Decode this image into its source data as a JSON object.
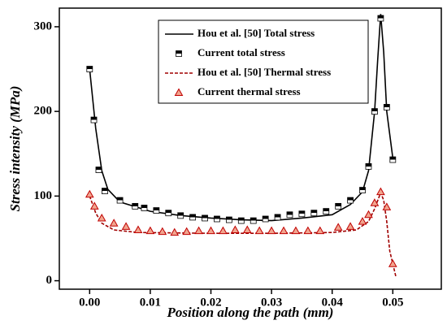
{
  "chart_data": {
    "type": "line",
    "xlabel": "Position along the path (mm)",
    "ylabel": "Stress intensity (MPa)",
    "xlim": [
      -0.005,
      0.058
    ],
    "ylim": [
      -10,
      322
    ],
    "xticks": [
      {
        "value": 0,
        "label": "0.00"
      },
      {
        "value": 0.01,
        "label": "0.01"
      },
      {
        "value": 0.02,
        "label": "0.02"
      },
      {
        "value": 0.03,
        "label": "0.03"
      },
      {
        "value": 0.04,
        "label": "0.04"
      },
      {
        "value": 0.05,
        "label": "0.05"
      }
    ],
    "yticks": [
      0,
      100,
      200,
      300
    ],
    "series": [
      {
        "name": "Hou et al. [50] Total  stress",
        "style": "solid-line",
        "color": "#000000",
        "x": [
          0,
          0.001,
          0.002,
          0.003,
          0.005,
          0.01,
          0.015,
          0.02,
          0.025,
          0.03,
          0.035,
          0.04,
          0.043,
          0.045,
          0.046,
          0.047,
          0.0475,
          0.048,
          0.0485,
          0.049,
          0.05
        ],
        "values": [
          250,
          180,
          130,
          108,
          93,
          82,
          77,
          74,
          72,
          71,
          74,
          78,
          90,
          105,
          130,
          200,
          260,
          315,
          270,
          200,
          145
        ]
      },
      {
        "name": "Current total stress",
        "style": "square-marker",
        "color": "#000000",
        "x": [
          0,
          0.0007,
          0.0015,
          0.0025,
          0.005,
          0.0075,
          0.009,
          0.011,
          0.013,
          0.015,
          0.017,
          0.019,
          0.021,
          0.023,
          0.025,
          0.027,
          0.029,
          0.031,
          0.033,
          0.035,
          0.037,
          0.039,
          0.041,
          0.043,
          0.045,
          0.046,
          0.047,
          0.048,
          0.049,
          0.05
        ],
        "values": [
          250,
          190,
          131,
          106,
          95,
          88,
          86,
          83,
          80,
          77,
          75,
          74,
          73,
          72,
          71,
          71,
          73,
          75,
          78,
          79,
          80,
          82,
          88,
          95,
          107,
          135,
          200,
          310,
          205,
          143
        ]
      },
      {
        "name": "Hou et al. [50] Thermal  stress",
        "style": "dashed-line",
        "color": "#a00000",
        "x": [
          0,
          0.001,
          0.002,
          0.004,
          0.008,
          0.02,
          0.03,
          0.04,
          0.044,
          0.046,
          0.047,
          0.048,
          0.0485,
          0.049,
          0.0495,
          0.0505
        ],
        "values": [
          100,
          80,
          68,
          60,
          57,
          56,
          56,
          57,
          60,
          70,
          85,
          104,
          95,
          70,
          35,
          5
        ]
      },
      {
        "name": "Current thermal stress",
        "style": "triangle-marker",
        "color": "#c00000",
        "x": [
          0,
          0.0008,
          0.002,
          0.004,
          0.006,
          0.008,
          0.01,
          0.012,
          0.014,
          0.016,
          0.018,
          0.02,
          0.022,
          0.024,
          0.026,
          0.028,
          0.03,
          0.032,
          0.034,
          0.036,
          0.038,
          0.041,
          0.043,
          0.045,
          0.046,
          0.047,
          0.048,
          0.049,
          0.05
        ],
        "values": [
          102,
          88,
          74,
          68,
          64,
          60,
          59,
          58,
          57,
          58,
          59,
          59,
          59,
          60,
          60,
          59,
          59,
          59,
          59,
          59,
          59,
          63,
          64,
          70,
          78,
          92,
          105,
          87,
          20
        ]
      }
    ]
  }
}
